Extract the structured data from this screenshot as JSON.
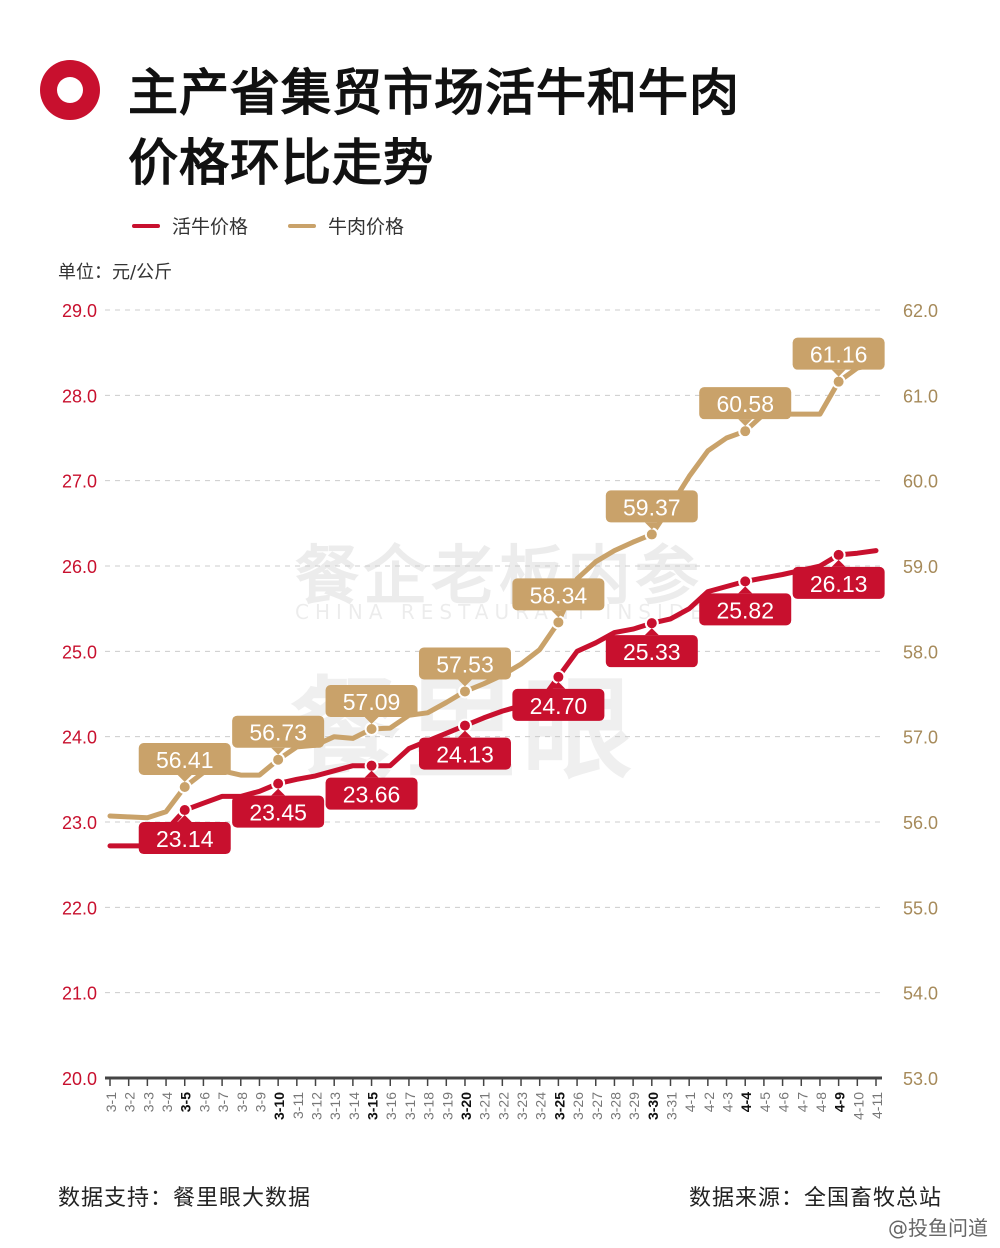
{
  "header": {
    "title_line1": "主产省集贸市场活牛和牛肉",
    "title_line2": "价格环比走势"
  },
  "colors": {
    "live_cattle": "#c8102e",
    "beef": "#c9a26a",
    "text_dark": "#111111",
    "grid": "#cccccc"
  },
  "unit_label": "单位：元/公斤",
  "watermark": {
    "main": "餐企老板内参",
    "sub": "CHINA RESTAURANT INSIDE",
    "big": "餐里眼"
  },
  "footer": {
    "support": "数据支持：餐里眼大数据",
    "source": "数据来源：全国畜牧总站",
    "weibo": "@投鱼问道"
  },
  "chart_data": {
    "type": "line",
    "x": [
      "3-1",
      "3-2",
      "3-3",
      "3-4",
      "3-5",
      "3-6",
      "3-7",
      "3-8",
      "3-9",
      "3-10",
      "3-11",
      "3-12",
      "3-13",
      "3-14",
      "3-15",
      "3-16",
      "3-17",
      "3-18",
      "3-19",
      "3-20",
      "3-21",
      "3-22",
      "3-23",
      "3-24",
      "3-25",
      "3-26",
      "3-27",
      "3-28",
      "3-29",
      "3-30",
      "3-31",
      "4-1",
      "4-2",
      "4-3",
      "4-4",
      "4-5",
      "4-6",
      "4-7",
      "4-8",
      "4-9",
      "4-10",
      "4-11"
    ],
    "bold_ticks": [
      "3-5",
      "3-10",
      "3-15",
      "3-20",
      "3-25",
      "3-30",
      "4-4",
      "4-9"
    ],
    "y_left": {
      "ylim": [
        20,
        29
      ],
      "ticks": [
        "20.0",
        "21.0",
        "22.0",
        "23.0",
        "24.0",
        "25.0",
        "26.0",
        "27.0",
        "28.0",
        "29.0"
      ]
    },
    "y_right": {
      "ylim": [
        53,
        62
      ],
      "ticks": [
        "53.0",
        "54.0",
        "55.0",
        "56.0",
        "57.0",
        "58.0",
        "59.0",
        "60.0",
        "61.0",
        "62.0"
      ]
    },
    "grid": true,
    "legend_position": "top-left",
    "series": [
      {
        "name": "活牛价格",
        "axis": "left",
        "values": [
          22.72,
          22.72,
          22.72,
          22.9,
          23.14,
          23.22,
          23.3,
          23.3,
          23.36,
          23.45,
          23.5,
          23.54,
          23.6,
          23.66,
          23.66,
          23.66,
          23.86,
          23.95,
          24.04,
          24.13,
          24.22,
          24.3,
          24.36,
          24.4,
          24.7,
          25.0,
          25.1,
          25.22,
          25.26,
          25.33,
          25.38,
          25.5,
          25.7,
          25.76,
          25.82,
          25.86,
          25.9,
          25.95,
          26.0,
          26.13,
          26.15,
          26.18
        ],
        "labels": [
          {
            "x": "3-5",
            "value": "23.14"
          },
          {
            "x": "3-10",
            "value": "23.45"
          },
          {
            "x": "3-15",
            "value": "23.66"
          },
          {
            "x": "3-20",
            "value": "24.13"
          },
          {
            "x": "3-25",
            "value": "24.70"
          },
          {
            "x": "3-30",
            "value": "25.33"
          },
          {
            "x": "4-4",
            "value": "25.82"
          },
          {
            "x": "4-9",
            "value": "26.13"
          }
        ]
      },
      {
        "name": "牛肉价格",
        "axis": "right",
        "values": [
          56.07,
          56.06,
          56.05,
          56.12,
          56.41,
          56.58,
          56.6,
          56.55,
          56.55,
          56.73,
          56.88,
          56.9,
          57.0,
          56.98,
          57.09,
          57.1,
          57.25,
          57.28,
          57.4,
          57.53,
          57.62,
          57.72,
          57.85,
          58.02,
          58.34,
          58.85,
          59.05,
          59.18,
          59.28,
          59.37,
          59.7,
          60.05,
          60.35,
          60.5,
          60.58,
          60.78,
          60.78,
          60.78,
          60.78,
          61.16,
          61.32,
          61.37
        ],
        "labels": [
          {
            "x": "3-5",
            "value": "56.41"
          },
          {
            "x": "3-10",
            "value": "56.73"
          },
          {
            "x": "3-15",
            "value": "57.09"
          },
          {
            "x": "3-20",
            "value": "57.53"
          },
          {
            "x": "3-25",
            "value": "58.34"
          },
          {
            "x": "3-30",
            "value": "59.37"
          },
          {
            "x": "4-4",
            "value": "60.58"
          },
          {
            "x": "4-9",
            "value": "61.16"
          }
        ]
      }
    ]
  }
}
